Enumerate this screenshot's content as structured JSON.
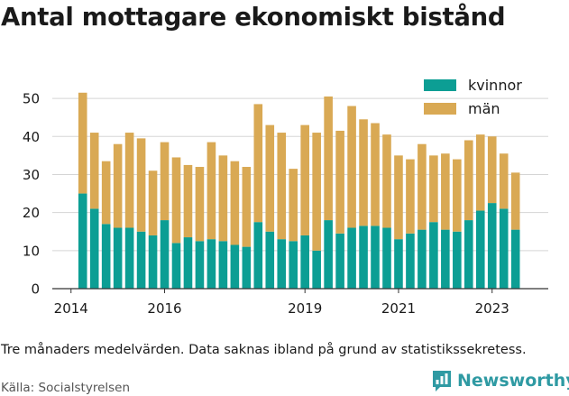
{
  "page": {
    "title": "Antal mottagare ekonomiskt bistånd",
    "note": "Tre månaders medelvärden. Data saknas ibland på grund av statistikssekretess.",
    "source": "Källa: Socialstyrelsen",
    "brand": "Newsworthy"
  },
  "colors": {
    "kvinnor": "#0c9e94",
    "man": "#d9a954",
    "grid": "#d5d5d5",
    "text": "#1a1a1a",
    "brand": "#2f9aa3"
  },
  "chart_data": {
    "type": "bar",
    "stacked": true,
    "grid": true,
    "legend_position": "top-right",
    "ylim": [
      0,
      55
    ],
    "yticks": [
      0,
      10,
      20,
      30,
      40,
      50
    ],
    "xlim": [
      2013.6,
      2024.2
    ],
    "xticks": [
      {
        "value": 2014.0,
        "label": "2014"
      },
      {
        "value": 2016.0,
        "label": "2016"
      },
      {
        "value": 2019.0,
        "label": "2019"
      },
      {
        "value": 2021.0,
        "label": "2021"
      },
      {
        "value": 2023.0,
        "label": "2023"
      }
    ],
    "x": [
      2014.25,
      2014.5,
      2014.75,
      2015.0,
      2015.25,
      2015.5,
      2015.75,
      2016.0,
      2016.25,
      2016.5,
      2016.75,
      2017.0,
      2017.25,
      2017.5,
      2017.75,
      2018.0,
      2018.25,
      2018.5,
      2018.75,
      2019.0,
      2019.25,
      2019.5,
      2019.75,
      2020.0,
      2020.25,
      2020.5,
      2020.75,
      2021.0,
      2021.25,
      2021.5,
      2021.75,
      2022.0,
      2022.25,
      2022.5,
      2022.75,
      2023.0,
      2023.25,
      2023.5
    ],
    "series": [
      {
        "name": "kvinnor",
        "values": [
          25,
          21,
          17,
          16,
          16,
          15,
          14,
          18,
          12,
          13.5,
          12.5,
          13,
          12.5,
          11.5,
          11,
          17.5,
          15,
          13,
          12.5,
          14,
          10,
          18,
          14.5,
          16,
          16.5,
          16.5,
          16,
          13,
          14.5,
          15.5,
          17.5,
          15.5,
          15,
          18,
          20.5,
          22.5,
          21,
          15.5
        ]
      },
      {
        "name": "män",
        "values": [
          26.5,
          20,
          16.5,
          22,
          25,
          24.5,
          17,
          20.5,
          22.5,
          19,
          19.5,
          25.5,
          22.5,
          22,
          21,
          31,
          28,
          28,
          19,
          29,
          31,
          32.5,
          27,
          32,
          28,
          27,
          24.5,
          22,
          19.5,
          22.5,
          17.5,
          20,
          19,
          21,
          20,
          17.5,
          14.5,
          15
        ]
      }
    ]
  }
}
